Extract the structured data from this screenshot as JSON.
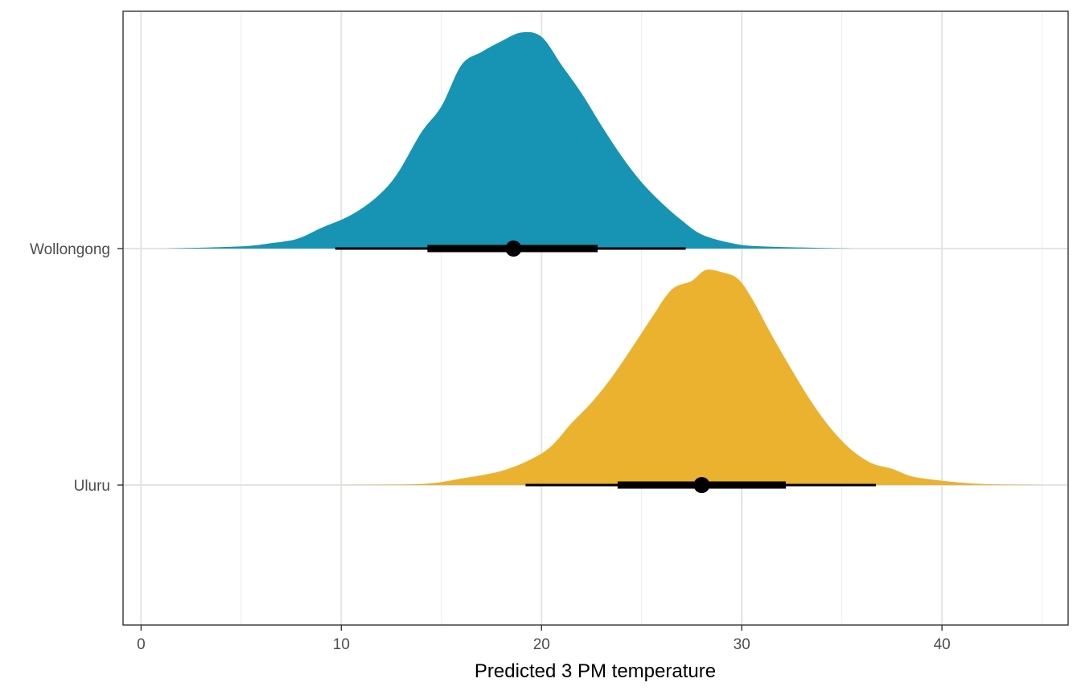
{
  "chart_data": {
    "type": "density-interval",
    "title": "",
    "xlabel": "Predicted 3 PM temperature",
    "ylabel": "",
    "xlim": [
      -0.9,
      46.3
    ],
    "x_ticks": [
      0,
      10,
      20,
      30,
      40
    ],
    "x_tick_labels": [
      "0",
      "10",
      "20",
      "30",
      "40"
    ],
    "grid": true,
    "legend": "none",
    "categories": [
      "Wollongong",
      "Uluru"
    ],
    "series": [
      {
        "name": "Wollongong",
        "color": "#1794b3",
        "median": 18.6,
        "interval_66": [
          14.3,
          22.8
        ],
        "interval_95": [
          9.7,
          27.2
        ],
        "density": [
          [
            1.3,
            0.0
          ],
          [
            5.0,
            0.01
          ],
          [
            6.5,
            0.025
          ],
          [
            7.8,
            0.045
          ],
          [
            9.0,
            0.095
          ],
          [
            10.5,
            0.155
          ],
          [
            11.8,
            0.24
          ],
          [
            12.8,
            0.345
          ],
          [
            14.0,
            0.535
          ],
          [
            15.0,
            0.655
          ],
          [
            16.0,
            0.845
          ],
          [
            17.0,
            0.905
          ],
          [
            18.0,
            0.955
          ],
          [
            19.0,
            0.995
          ],
          [
            20.0,
            0.975
          ],
          [
            21.0,
            0.845
          ],
          [
            22.0,
            0.715
          ],
          [
            23.0,
            0.565
          ],
          [
            24.0,
            0.425
          ],
          [
            25.0,
            0.305
          ],
          [
            26.0,
            0.21
          ],
          [
            27.0,
            0.13
          ],
          [
            28.0,
            0.065
          ],
          [
            29.5,
            0.025
          ],
          [
            31.0,
            0.01
          ],
          [
            35.5,
            0.0
          ]
        ]
      },
      {
        "name": "Uluru",
        "color": "#eab22f",
        "median": 28.0,
        "interval_66": [
          23.8,
          32.2
        ],
        "interval_95": [
          19.2,
          36.7
        ],
        "density": [
          [
            9.7,
            0.0
          ],
          [
            14.0,
            0.005
          ],
          [
            16.0,
            0.03
          ],
          [
            18.0,
            0.065
          ],
          [
            19.5,
            0.12
          ],
          [
            20.5,
            0.18
          ],
          [
            21.5,
            0.285
          ],
          [
            22.5,
            0.38
          ],
          [
            23.5,
            0.495
          ],
          [
            24.5,
            0.63
          ],
          [
            25.5,
            0.77
          ],
          [
            26.5,
            0.9
          ],
          [
            27.5,
            0.94
          ],
          [
            28.2,
            0.99
          ],
          [
            29.0,
            0.98
          ],
          [
            29.8,
            0.95
          ],
          [
            30.5,
            0.86
          ],
          [
            31.5,
            0.69
          ],
          [
            32.5,
            0.53
          ],
          [
            33.5,
            0.38
          ],
          [
            34.5,
            0.255
          ],
          [
            35.5,
            0.16
          ],
          [
            36.5,
            0.1
          ],
          [
            37.5,
            0.075
          ],
          [
            38.5,
            0.04
          ],
          [
            40.0,
            0.02
          ],
          [
            42.0,
            0.005
          ],
          [
            45.0,
            0.0
          ]
        ]
      }
    ]
  }
}
